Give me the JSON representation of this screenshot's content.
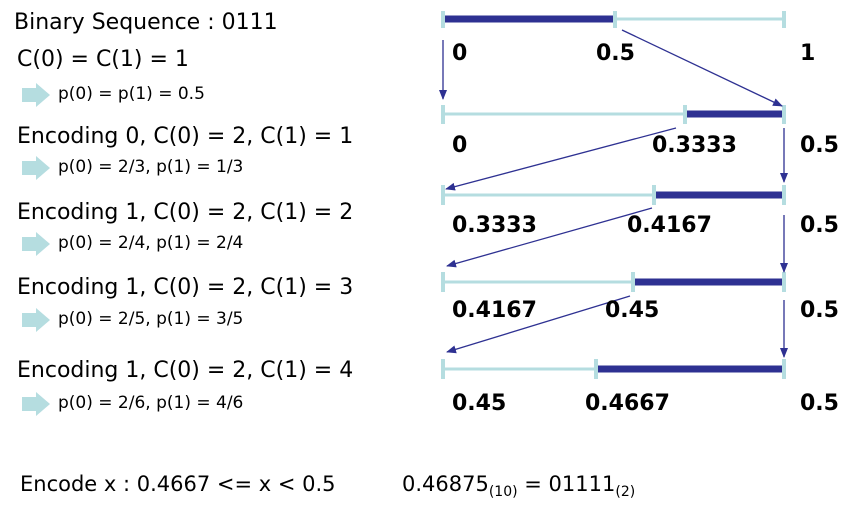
{
  "left": {
    "title": "Binary Sequence : 0111",
    "steps": [
      {
        "counts": "C(0) = C(1) = 1",
        "probs": "p(0) = p(1) = 0.5"
      },
      {
        "counts": "Encoding 0, C(0) = 2, C(1) = 1",
        "probs": "p(0) = 2/3, p(1) = 1/3"
      },
      {
        "counts": "Encoding 1, C(0) = 2, C(1) = 2",
        "probs": "p(0) = 2/4, p(1) = 2/4"
      },
      {
        "counts": "Encoding 1, C(0) = 2, C(1) = 3",
        "probs": "p(0) = 2/5, p(1) = 3/5"
      },
      {
        "counts": "Encoding 1, C(0) = 2, C(1) = 4",
        "probs": "p(0) = 2/6, p(1) = 4/6"
      }
    ]
  },
  "intervals": [
    {
      "low": "0",
      "split": "0.5",
      "high": "1"
    },
    {
      "low": "0",
      "split": "0.3333",
      "high": "0.5"
    },
    {
      "low": "0.3333",
      "split": "0.4167",
      "high": "0.5"
    },
    {
      "low": "0.4167",
      "split": "0.45",
      "high": "0.5"
    },
    {
      "low": "0.45",
      "split": "0.4667",
      "high": "0.5"
    }
  ],
  "footer": {
    "encode": "Encode x : 0.4667 <= x < 0.5",
    "decimal": "0.46875",
    "decimal_base": "(10)",
    "binary": " = 01111",
    "binary_base": "(2)"
  },
  "colors": {
    "light_bar": "#b5dde0",
    "dark_bar": "#2e3192",
    "pointer_arrow": "#b5dde0"
  }
}
